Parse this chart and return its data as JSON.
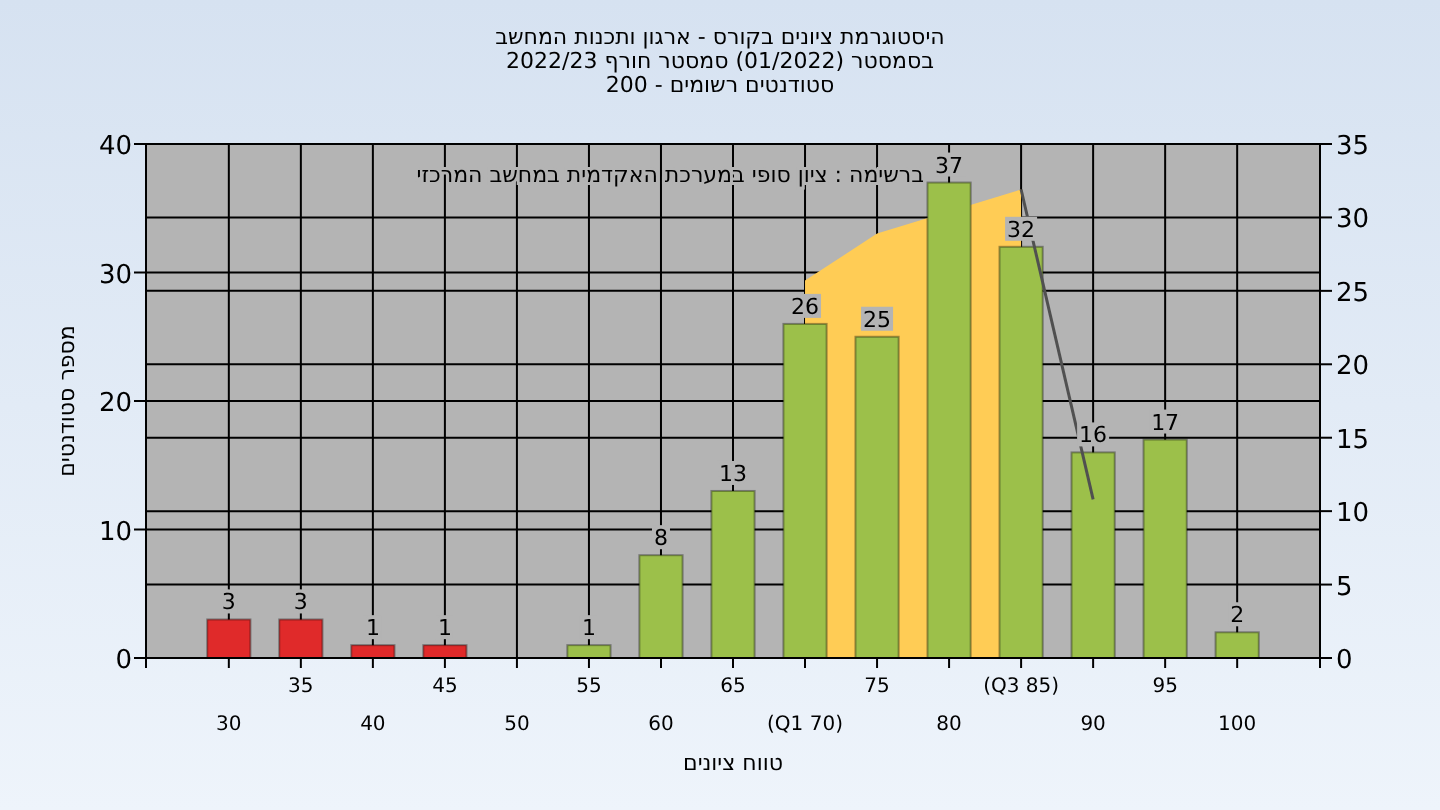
{
  "chart_data": {
    "type": "bar",
    "title": "היסטוגרמת ציונים בקורס - ארגון ותכנות המחשב",
    "subtitle": "בסמסטר  (01/2022)  סמסטר חורף 2022/23\nסטודנטים רשומים - 200",
    "xlabel": "טווח ציונים",
    "ylabel": "מספר סטודנטים",
    "annotations": [
      "ברשימה : ציון סופי במערכת האקדמית במחשב המרכזי"
    ],
    "categories": [
      "30",
      "35",
      "40",
      "45",
      "50",
      "55",
      "60",
      "65",
      "(Q1 70)",
      "75",
      "80",
      "(Q3 85)",
      "90",
      "95",
      "100"
    ],
    "series": [
      {
        "type": "area",
        "axis": "y2",
        "color": "#ffcc55",
        "values": [
          null,
          null,
          null,
          null,
          null,
          null,
          null,
          null,
          25.7,
          28.9,
          null,
          31.9,
          null,
          null,
          null
        ]
      },
      {
        "colors": [
          "#e02a2a",
          "#e02a2a",
          "#e02a2a",
          "#e02a2a",
          "#9cc04a",
          "#9cc04a",
          "#9cc04a",
          "#9cc04a",
          "#9cc04a",
          "#9cc04a",
          "#9cc04a",
          "#9cc04a",
          "#9cc04a",
          "#9cc04a",
          "#9cc04a"
        ],
        "values": [
          3,
          3,
          1,
          1,
          0,
          1,
          8,
          13,
          26,
          25,
          37,
          32,
          16,
          17,
          2
        ],
        "value_labels": [
          "3",
          "3",
          "1",
          "1",
          null,
          "1",
          "8",
          "13",
          "26",
          "25",
          "37",
          "32",
          "16",
          "17",
          "2"
        ]
      },
      {
        "type": "line",
        "axis": "y2",
        "color": "#505050",
        "values": [
          null,
          null,
          null,
          null,
          null,
          null,
          null,
          null,
          null,
          null,
          null,
          31.9,
          10.8,
          null,
          null
        ]
      }
    ],
    "ylim": [
      0,
      40
    ],
    "yticks": [
      0,
      10,
      20,
      30,
      40
    ],
    "y2lim": [
      0,
      35
    ],
    "y2ticks": [
      0,
      5,
      10,
      15,
      20,
      25,
      30,
      35
    ],
    "grid": true
  }
}
